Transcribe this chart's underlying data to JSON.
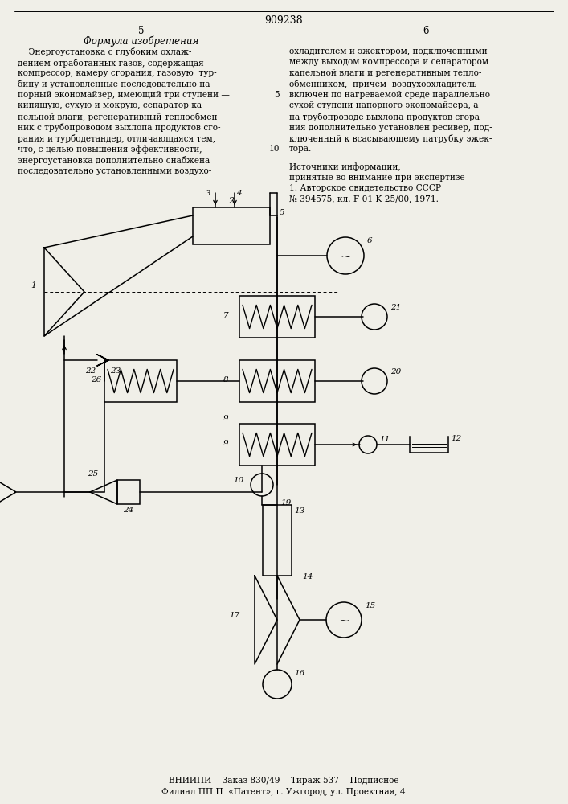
{
  "page_number_top": "909238",
  "col_left_number": "5",
  "col_right_number": "6",
  "col_left_heading": "Формула изобретения",
  "col_left_text_lines": [
    "    Энергоустановка с глубоким охлаж-",
    "дением отработанных газов, содержащая",
    "компрессор, камеру сгорания, газовую  тур-",
    "бину и установленные последовательно на-",
    "порный экономайзер, имеющий три ступени —",
    "кипящую, сухую и мокрую, сепаратор ка-",
    "пельной влаги, регенеративный теплообмен-",
    "ник с трубопроводом выхлопа продуктов сго-",
    "рания и турбодетандер, отличающаяся тем,",
    "что, с целью повышения эффективности,",
    "энергоустановка дополнительно снабжена",
    "последовательно установленными воздухо-"
  ],
  "col_right_text_lines": [
    "охладителем и эжектором, подключенными",
    "между выходом компрессора и сепаратором",
    "капельной влаги и регенеративным тепло-",
    "обменником,  причем  воздухоохладитель",
    "включен по нагреваемой среде параллельно",
    "сухой ступени напорного экономайзера, а",
    "на трубопроводе выхлопа продуктов сгора-",
    "ния дополнительно установлен ресивер, под-",
    "ключенный к всасывающему патрубку эжек-",
    "тора."
  ],
  "sources_heading": "Источники информации,",
  "sources_text_lines": [
    "принятые во внимание при экспертизе",
    "1. Авторское свидетельство СССР",
    "№ 394575, кл. F 01 K 25/00, 1971."
  ],
  "line_num_5_row": 4,
  "line_num_10_row": 9,
  "footer_line1": "ВНИИПИ    Заказ 830/49    Тираж 537    Подписное",
  "footer_line2": "Филиал ПП П  «Патент», г. Ужгород, ул. Проектная, 4",
  "bg": "#f0efe8"
}
